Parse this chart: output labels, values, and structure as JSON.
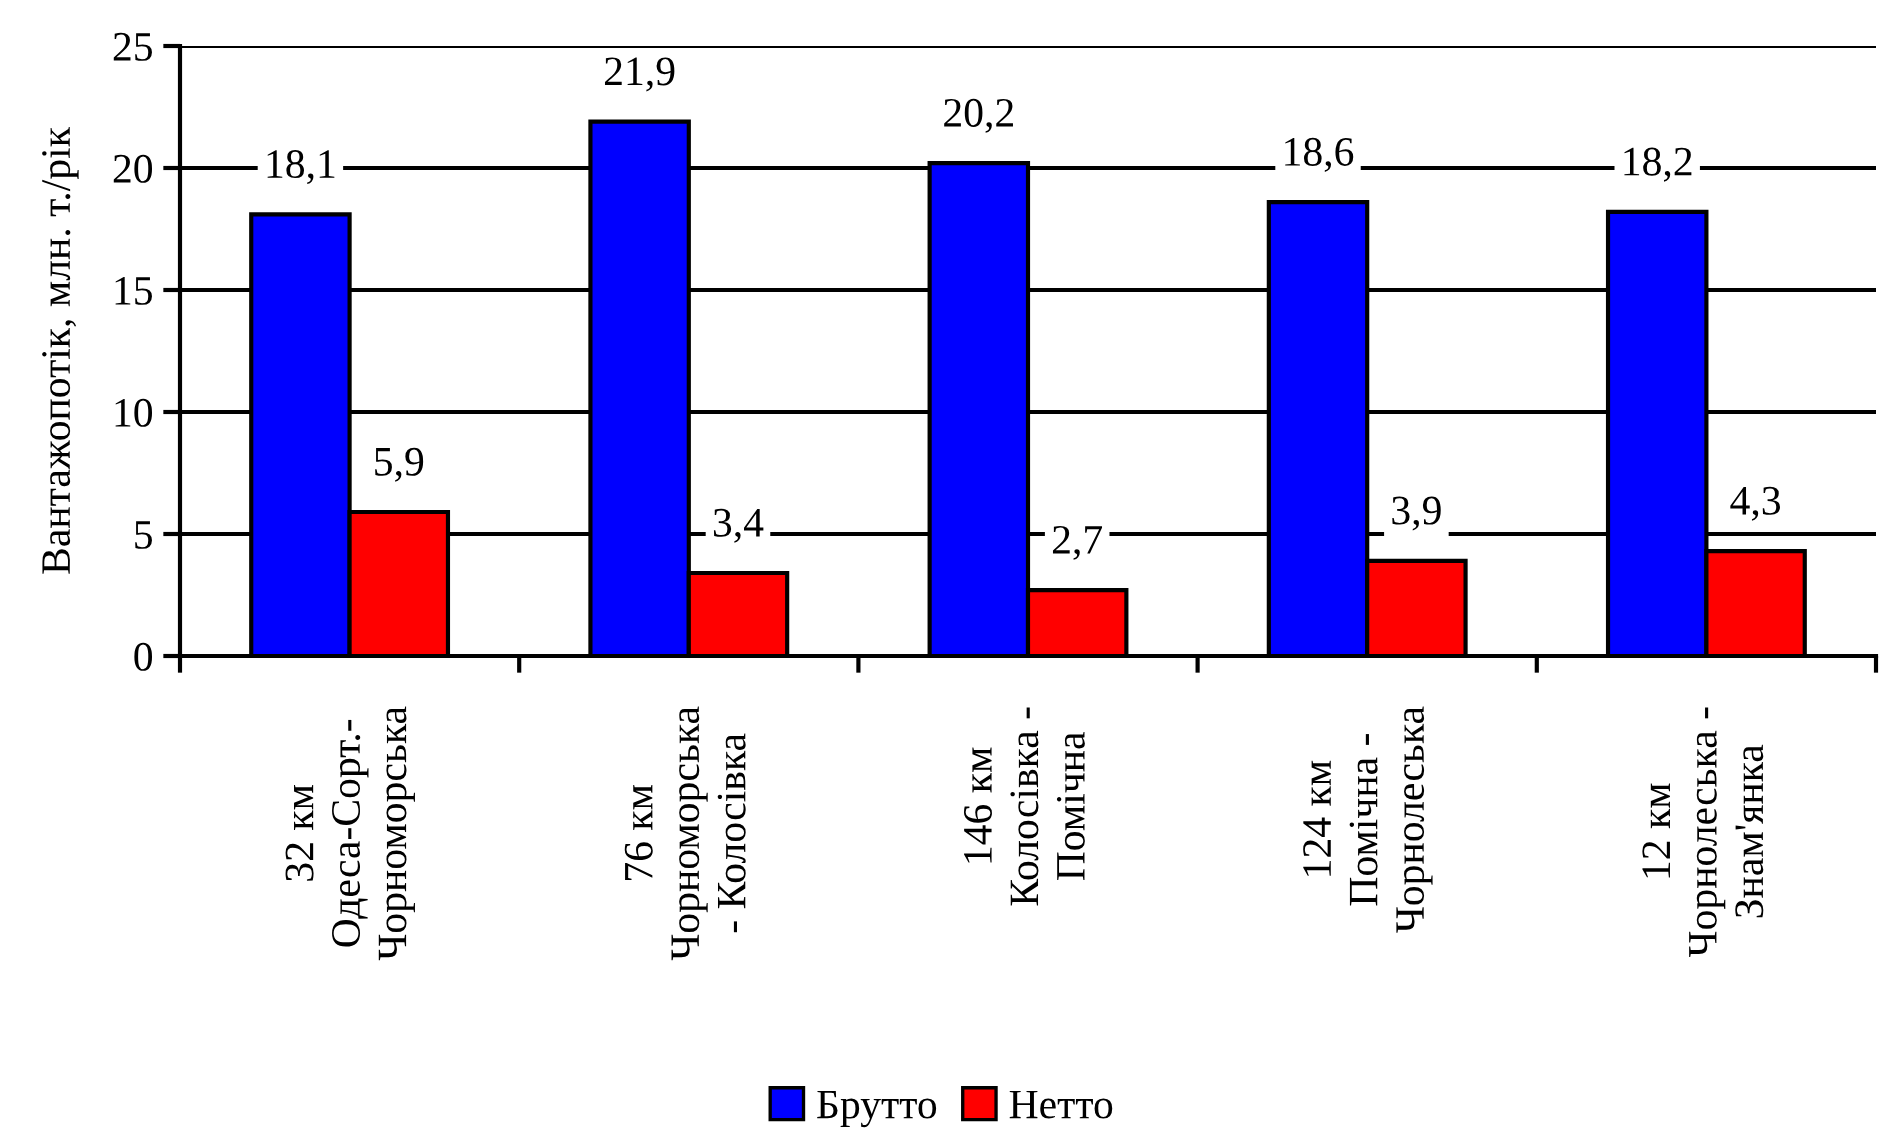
{
  "chart_data": {
    "type": "bar",
    "categories": [
      "32 км\nОдеса-Сорт.-\nЧорноморська",
      "76 км\nЧорноморська\n- Колосівка",
      "146 км\nКолосівка -\nПомічна",
      "124 км\nПомічна -\nЧорнолеська",
      "12 км\nЧорнолеська -\nЗнам'янка"
    ],
    "series": [
      {
        "name": "Брутто",
        "color": "#0000ff",
        "values": [
          18.1,
          21.9,
          20.2,
          18.6,
          18.2
        ],
        "value_labels": [
          "18,1",
          "21,9",
          "20,2",
          "18,6",
          "18,2"
        ]
      },
      {
        "name": "Нетто",
        "color": "#ff0000",
        "values": [
          5.9,
          3.4,
          2.7,
          3.9,
          4.3
        ],
        "value_labels": [
          "5,9",
          "3,4",
          "2,7",
          "3,9",
          "4,3"
        ]
      }
    ],
    "ylabel": "Вантажопотік, млн. т./рік",
    "ylim": [
      0,
      25
    ],
    "yticks": [
      0,
      5,
      10,
      15,
      20,
      25
    ],
    "grid": "y",
    "legend": "bottom"
  }
}
